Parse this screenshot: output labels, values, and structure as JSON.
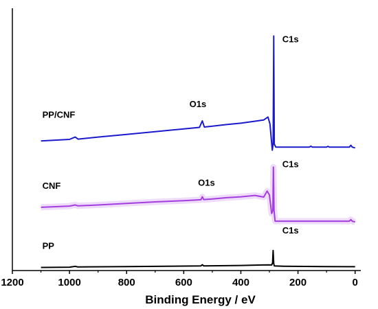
{
  "chart_data": {
    "type": "line",
    "title": "",
    "xlabel": "Binding Energy / eV",
    "ylabel": "",
    "xlim": [
      1200,
      -20
    ],
    "x_ticks": [
      1200,
      1000,
      800,
      600,
      400,
      200,
      0
    ],
    "x_tick_labels": [
      "1200",
      "1000",
      "800",
      "600",
      "400",
      "200",
      "0"
    ],
    "grid": false,
    "series": [
      {
        "name": "PP/CNF",
        "color": "#1a1acc",
        "shade": false,
        "points": [
          [
            1100,
            84
          ],
          [
            1000,
            85
          ],
          [
            980,
            86.5
          ],
          [
            970,
            85.2
          ],
          [
            900,
            86.5
          ],
          [
            800,
            88.2
          ],
          [
            700,
            90
          ],
          [
            600,
            91.8
          ],
          [
            545,
            92.8
          ],
          [
            535,
            97
          ],
          [
            528,
            93
          ],
          [
            500,
            93.6
          ],
          [
            450,
            94.6
          ],
          [
            400,
            95.5
          ],
          [
            350,
            96.8
          ],
          [
            320,
            97.6
          ],
          [
            305,
            99.5
          ],
          [
            298,
            95
          ],
          [
            290,
            78
          ],
          [
            287,
            82
          ],
          [
            285,
            152
          ],
          [
            283,
            82
          ],
          [
            278,
            80
          ],
          [
            200,
            80
          ],
          [
            160,
            80
          ],
          [
            155,
            80.6
          ],
          [
            150,
            80
          ],
          [
            100,
            80
          ],
          [
            95,
            80.5
          ],
          [
            90,
            80
          ],
          [
            20,
            80
          ],
          [
            15,
            81.2
          ],
          [
            10,
            80
          ],
          [
            0,
            79.5
          ]
        ],
        "peak_labels": [
          {
            "text": "C1s",
            "x": 255,
            "y": 148
          },
          {
            "text": "O1s",
            "x": 580,
            "y": 106
          },
          {
            "text": "PP/CNF",
            "x": 1095,
            "y": 99
          }
        ]
      },
      {
        "name": "CNF",
        "color": "#a33de0",
        "shade": true,
        "points": [
          [
            1100,
            41
          ],
          [
            1000,
            41.8
          ],
          [
            980,
            42.5
          ],
          [
            970,
            41.9
          ],
          [
            900,
            42.5
          ],
          [
            800,
            43.5
          ],
          [
            700,
            44.5
          ],
          [
            600,
            45.3
          ],
          [
            540,
            45.9
          ],
          [
            535,
            47.8
          ],
          [
            530,
            46
          ],
          [
            500,
            46.4
          ],
          [
            450,
            47.2
          ],
          [
            400,
            47.8
          ],
          [
            350,
            48.7
          ],
          [
            320,
            47.6
          ],
          [
            308,
            51.5
          ],
          [
            300,
            49
          ],
          [
            292,
            37
          ],
          [
            288,
            39
          ],
          [
            286,
            67
          ],
          [
            284,
            39
          ],
          [
            280,
            32
          ],
          [
            250,
            32
          ],
          [
            200,
            32
          ],
          [
            100,
            32
          ],
          [
            20,
            32
          ],
          [
            15,
            33
          ],
          [
            10,
            32
          ],
          [
            0,
            31.5
          ]
        ],
        "peak_labels": [
          {
            "text": "C1s",
            "x": 255,
            "y": 67
          },
          {
            "text": "O1s",
            "x": 550,
            "y": 55
          },
          {
            "text": "CNF",
            "x": 1095,
            "y": 53
          }
        ]
      },
      {
        "name": "PP",
        "color": "#000000",
        "shade": false,
        "points": [
          [
            1100,
            2
          ],
          [
            1000,
            2.2
          ],
          [
            980,
            2.7
          ],
          [
            970,
            2.3
          ],
          [
            800,
            2.6
          ],
          [
            600,
            2.9
          ],
          [
            540,
            3
          ],
          [
            535,
            3.8
          ],
          [
            530,
            3
          ],
          [
            400,
            3.3
          ],
          [
            350,
            3.5
          ],
          [
            300,
            3.7
          ],
          [
            292,
            3.6
          ],
          [
            289,
            5
          ],
          [
            287,
            13
          ],
          [
            285,
            4.5
          ],
          [
            283,
            3
          ],
          [
            250,
            2.8
          ],
          [
            100,
            2.6
          ],
          [
            20,
            2.5
          ],
          [
            0,
            2.5
          ]
        ],
        "peak_labels": [
          {
            "text": "C1s",
            "x": 255,
            "y": 24
          },
          {
            "text": "PP",
            "x": 1095,
            "y": 14
          }
        ]
      }
    ]
  }
}
